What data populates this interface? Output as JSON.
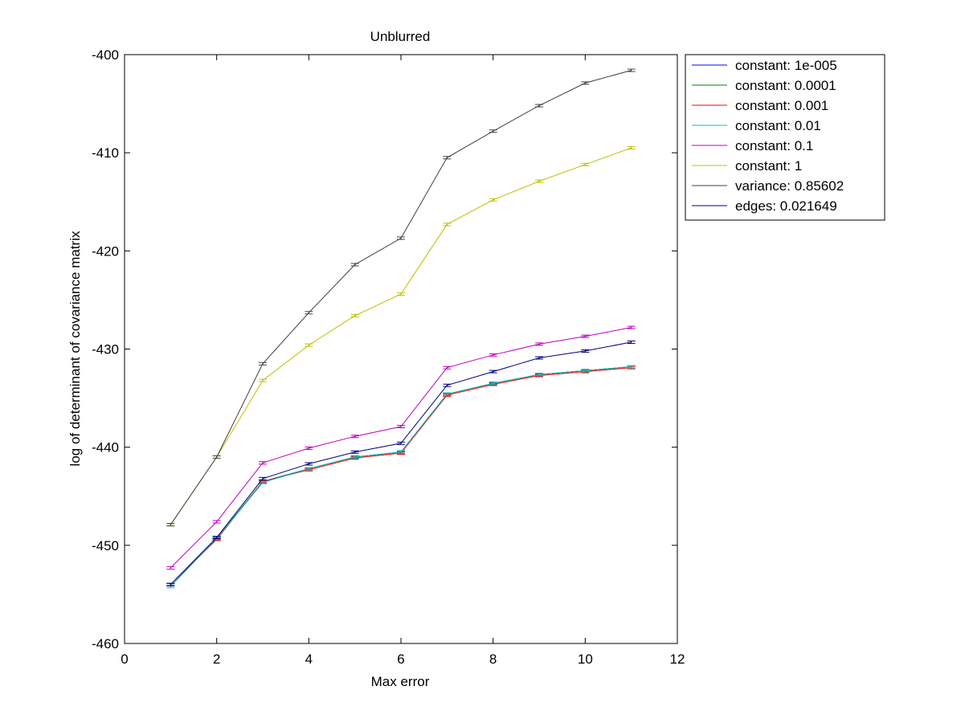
{
  "chart_data": {
    "type": "line",
    "title": "Unblurred",
    "xlabel": "Max error",
    "ylabel": "log of determinant of covariance matrix",
    "xlim": [
      0,
      12
    ],
    "ylim": [
      -460,
      -400
    ],
    "xticks": [
      0,
      2,
      4,
      6,
      8,
      10,
      12
    ],
    "yticks": [
      -460,
      -450,
      -440,
      -430,
      -420,
      -410,
      -400
    ],
    "grid": false,
    "legend_position": "outside-top-right",
    "error_bars": true,
    "x": [
      1,
      2,
      3,
      4,
      5,
      6,
      7,
      8,
      9,
      10,
      11
    ],
    "series": [
      {
        "name": "constant: 1e-005",
        "color": "#0000ff",
        "values": [
          -454.0,
          -449.3,
          -443.5,
          -442.2,
          -441.0,
          -440.5,
          -434.6,
          -433.5,
          -432.6,
          -432.2,
          -431.8
        ]
      },
      {
        "name": "constant: 0.0001",
        "color": "#008000",
        "values": [
          -454.0,
          -449.3,
          -443.5,
          -442.2,
          -441.0,
          -440.5,
          -434.6,
          -433.5,
          -432.6,
          -432.2,
          -431.8
        ]
      },
      {
        "name": "constant: 0.001",
        "color": "#ff0000",
        "values": [
          -454.0,
          -449.4,
          -443.5,
          -442.3,
          -441.1,
          -440.6,
          -434.7,
          -433.6,
          -432.7,
          -432.3,
          -431.9
        ]
      },
      {
        "name": "constant: 0.01",
        "color": "#00bfbf",
        "values": [
          -454.2,
          -449.3,
          -443.6,
          -442.2,
          -441.0,
          -440.5,
          -434.6,
          -433.5,
          -432.6,
          -432.2,
          -431.8
        ]
      },
      {
        "name": "constant: 0.1",
        "color": "#bf00bf",
        "values": [
          -452.3,
          -447.6,
          -441.6,
          -440.1,
          -438.9,
          -437.9,
          -431.9,
          -430.6,
          -429.5,
          -428.7,
          -427.8
        ]
      },
      {
        "name": "constant: 1",
        "color": "#bfbf00",
        "values": [
          -447.9,
          -441.0,
          -433.2,
          -429.6,
          -426.6,
          -424.4,
          -417.3,
          -414.8,
          -412.9,
          -411.2,
          -409.5
        ]
      },
      {
        "name": "variance: 0.85602",
        "color": "#404040",
        "values": [
          -447.9,
          -441.0,
          -431.5,
          -426.3,
          -421.4,
          -418.7,
          -410.5,
          -407.8,
          -405.2,
          -402.9,
          -401.6
        ]
      },
      {
        "name": "edges: 0.021649",
        "color": "#00007f",
        "values": [
          -454.0,
          -449.2,
          -443.2,
          -441.7,
          -440.5,
          -439.6,
          -433.7,
          -432.3,
          -430.9,
          -430.2,
          -429.3
        ]
      }
    ]
  }
}
